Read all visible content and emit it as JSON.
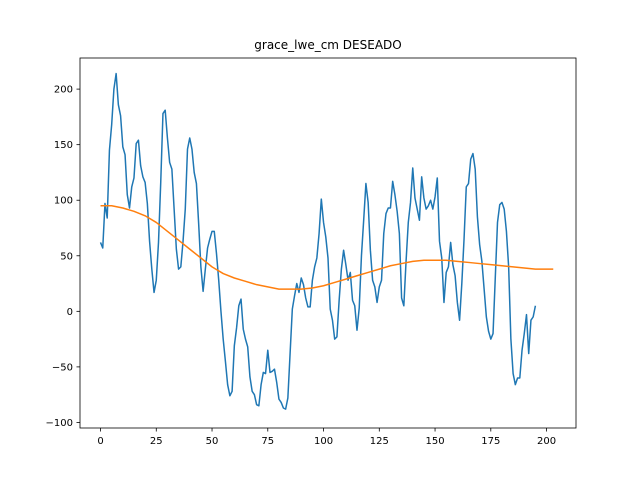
{
  "chart_data": {
    "type": "line",
    "title": "grace_lwe_cm DESEADO",
    "xlabel": "",
    "ylabel": "",
    "xlim": [
      -9.2,
      213.2
    ],
    "ylim": [
      -105,
      228
    ],
    "grid": false,
    "x_ticks": [
      0,
      25,
      50,
      75,
      100,
      125,
      150,
      175,
      200
    ],
    "y_ticks": [
      -100,
      -50,
      0,
      50,
      100,
      150,
      200
    ],
    "x_tick_labels": [
      "0",
      "25",
      "50",
      "75",
      "100",
      "125",
      "150",
      "175",
      "200"
    ],
    "y_tick_labels": [
      "−100",
      "−50",
      "0",
      "50",
      "100",
      "150",
      "200"
    ],
    "series": [
      {
        "color": "#1f77b4",
        "points": [
          [
            0,
            62
          ],
          [
            1,
            57
          ],
          [
            2,
            97
          ],
          [
            3,
            84
          ],
          [
            4,
            145
          ],
          [
            5,
            168
          ],
          [
            6,
            200
          ],
          [
            7,
            214
          ],
          [
            8,
            186
          ],
          [
            9,
            176
          ],
          [
            10,
            148
          ],
          [
            11,
            141
          ],
          [
            12,
            105
          ],
          [
            13,
            93
          ],
          [
            14,
            112
          ],
          [
            15,
            120
          ],
          [
            16,
            151
          ],
          [
            17,
            154
          ],
          [
            18,
            131
          ],
          [
            19,
            121
          ],
          [
            20,
            116
          ],
          [
            21,
            97
          ],
          [
            22,
            63
          ],
          [
            23,
            38
          ],
          [
            24,
            17
          ],
          [
            25,
            28
          ],
          [
            26,
            62
          ],
          [
            27,
            116
          ],
          [
            28,
            178
          ],
          [
            29,
            181
          ],
          [
            30,
            156
          ],
          [
            31,
            134
          ],
          [
            32,
            128
          ],
          [
            33,
            92
          ],
          [
            34,
            56
          ],
          [
            35,
            38
          ],
          [
            36,
            40
          ],
          [
            37,
            63
          ],
          [
            38,
            92
          ],
          [
            39,
            146
          ],
          [
            40,
            156
          ],
          [
            41,
            146
          ],
          [
            42,
            125
          ],
          [
            43,
            115
          ],
          [
            44,
            79
          ],
          [
            45,
            40
          ],
          [
            46,
            18
          ],
          [
            47,
            38
          ],
          [
            48,
            57
          ],
          [
            49,
            65
          ],
          [
            50,
            72
          ],
          [
            51,
            72
          ],
          [
            52,
            52
          ],
          [
            53,
            28
          ],
          [
            54,
            0
          ],
          [
            55,
            -25
          ],
          [
            56,
            -45
          ],
          [
            57,
            -66
          ],
          [
            58,
            -76
          ],
          [
            59,
            -72
          ],
          [
            60,
            -31
          ],
          [
            61,
            -15
          ],
          [
            62,
            5
          ],
          [
            63,
            11
          ],
          [
            64,
            -16
          ],
          [
            65,
            -25
          ],
          [
            66,
            -32
          ],
          [
            67,
            -59
          ],
          [
            68,
            -72
          ],
          [
            69,
            -75
          ],
          [
            70,
            -84
          ],
          [
            71,
            -85
          ],
          [
            72,
            -66
          ],
          [
            73,
            -55
          ],
          [
            74,
            -56
          ],
          [
            75,
            -35
          ],
          [
            76,
            -55
          ],
          [
            77,
            -54
          ],
          [
            78,
            -52
          ],
          [
            79,
            -64
          ],
          [
            80,
            -79
          ],
          [
            81,
            -82
          ],
          [
            82,
            -87
          ],
          [
            83,
            -88
          ],
          [
            84,
            -78
          ],
          [
            85,
            -38
          ],
          [
            86,
            2
          ],
          [
            87,
            14
          ],
          [
            88,
            25
          ],
          [
            89,
            17
          ],
          [
            90,
            30
          ],
          [
            91,
            24
          ],
          [
            92,
            12
          ],
          [
            93,
            4
          ],
          [
            94,
            4
          ],
          [
            95,
            28
          ],
          [
            96,
            40
          ],
          [
            97,
            48
          ],
          [
            98,
            70
          ],
          [
            99,
            101
          ],
          [
            100,
            80
          ],
          [
            101,
            67
          ],
          [
            102,
            48
          ],
          [
            103,
            2
          ],
          [
            104,
            -8
          ],
          [
            105,
            -25
          ],
          [
            106,
            -23
          ],
          [
            107,
            10
          ],
          [
            108,
            38
          ],
          [
            109,
            55
          ],
          [
            110,
            42
          ],
          [
            111,
            28
          ],
          [
            112,
            35
          ],
          [
            113,
            10
          ],
          [
            114,
            5
          ],
          [
            115,
            -17
          ],
          [
            116,
            3
          ],
          [
            117,
            50
          ],
          [
            118,
            82
          ],
          [
            119,
            115
          ],
          [
            120,
            98
          ],
          [
            121,
            55
          ],
          [
            122,
            28
          ],
          [
            123,
            22
          ],
          [
            124,
            8
          ],
          [
            125,
            22
          ],
          [
            126,
            28
          ],
          [
            127,
            70
          ],
          [
            128,
            88
          ],
          [
            129,
            93
          ],
          [
            130,
            93
          ],
          [
            131,
            117
          ],
          [
            132,
            105
          ],
          [
            133,
            90
          ],
          [
            134,
            70
          ],
          [
            135,
            12
          ],
          [
            136,
            5
          ],
          [
            137,
            45
          ],
          [
            138,
            80
          ],
          [
            139,
            98
          ],
          [
            140,
            129
          ],
          [
            141,
            102
          ],
          [
            142,
            92
          ],
          [
            143,
            82
          ],
          [
            144,
            121
          ],
          [
            145,
            102
          ],
          [
            146,
            92
          ],
          [
            147,
            95
          ],
          [
            148,
            100
          ],
          [
            149,
            92
          ],
          [
            150,
            103
          ],
          [
            151,
            120
          ],
          [
            152,
            63
          ],
          [
            153,
            48
          ],
          [
            154,
            8
          ],
          [
            155,
            35
          ],
          [
            156,
            40
          ],
          [
            157,
            62
          ],
          [
            158,
            42
          ],
          [
            159,
            32
          ],
          [
            160,
            8
          ],
          [
            161,
            -8
          ],
          [
            162,
            25
          ],
          [
            163,
            65
          ],
          [
            164,
            112
          ],
          [
            165,
            115
          ],
          [
            166,
            137
          ],
          [
            167,
            142
          ],
          [
            168,
            128
          ],
          [
            169,
            85
          ],
          [
            170,
            60
          ],
          [
            171,
            45
          ],
          [
            172,
            20
          ],
          [
            173,
            -5
          ],
          [
            174,
            -18
          ],
          [
            175,
            -25
          ],
          [
            176,
            -20
          ],
          [
            177,
            30
          ],
          [
            178,
            80
          ],
          [
            179,
            96
          ],
          [
            180,
            98
          ],
          [
            181,
            92
          ],
          [
            182,
            72
          ],
          [
            183,
            40
          ],
          [
            184,
            -25
          ],
          [
            185,
            -56
          ],
          [
            186,
            -66
          ],
          [
            187,
            -60
          ],
          [
            188,
            -60
          ],
          [
            189,
            -35
          ],
          [
            190,
            -20
          ],
          [
            191,
            -3
          ],
          [
            192,
            -38
          ],
          [
            193,
            -8
          ],
          [
            194,
            -5
          ],
          [
            195,
            5
          ]
        ]
      },
      {
        "color": "#ff7f0e",
        "points": [
          [
            0,
            95
          ],
          [
            5,
            95
          ],
          [
            10,
            93
          ],
          [
            15,
            90
          ],
          [
            20,
            86
          ],
          [
            25,
            80
          ],
          [
            30,
            72
          ],
          [
            35,
            64
          ],
          [
            40,
            56
          ],
          [
            45,
            48
          ],
          [
            50,
            40
          ],
          [
            55,
            34
          ],
          [
            60,
            30
          ],
          [
            65,
            27
          ],
          [
            70,
            24
          ],
          [
            75,
            22
          ],
          [
            80,
            20
          ],
          [
            85,
            20
          ],
          [
            90,
            20
          ],
          [
            95,
            21
          ],
          [
            100,
            23
          ],
          [
            105,
            26
          ],
          [
            110,
            29
          ],
          [
            115,
            32
          ],
          [
            120,
            35
          ],
          [
            125,
            38
          ],
          [
            130,
            41
          ],
          [
            135,
            43
          ],
          [
            140,
            45
          ],
          [
            145,
            46
          ],
          [
            150,
            46
          ],
          [
            155,
            46
          ],
          [
            160,
            45
          ],
          [
            165,
            44
          ],
          [
            170,
            43
          ],
          [
            175,
            42
          ],
          [
            180,
            41
          ],
          [
            185,
            40
          ],
          [
            190,
            39
          ],
          [
            195,
            38
          ],
          [
            200,
            38
          ],
          [
            203,
            38
          ]
        ]
      }
    ]
  }
}
